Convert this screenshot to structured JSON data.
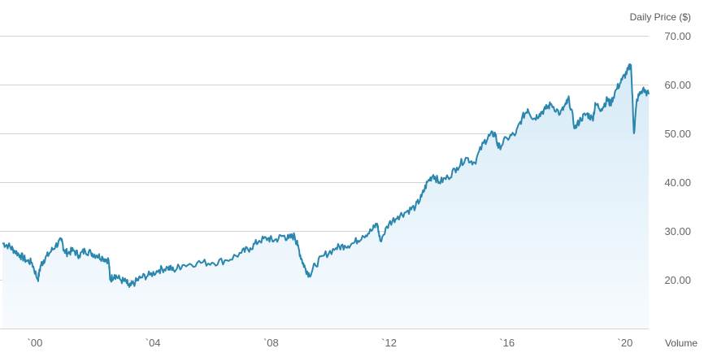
{
  "chart_data": {
    "type": "area",
    "title": "",
    "ylabel": "Daily Price ($)",
    "volume_label": "Volume",
    "ylim": [
      10,
      70
    ],
    "xlim": [
      1998.9,
      2020.8
    ],
    "y_ticks": [
      {
        "value": 70,
        "label": "70.00"
      },
      {
        "value": 60,
        "label": "60.00"
      },
      {
        "value": 50,
        "label": "50.00"
      },
      {
        "value": 40,
        "label": "40.00"
      },
      {
        "value": 30,
        "label": "30.00"
      },
      {
        "value": 20,
        "label": "20.00"
      }
    ],
    "gridline_values": [
      70,
      60,
      50,
      40,
      30,
      20,
      10
    ],
    "x_ticks": [
      {
        "value": 2000,
        "label": "`00"
      },
      {
        "value": 2004,
        "label": "`04"
      },
      {
        "value": 2008,
        "label": "`08"
      },
      {
        "value": 2012,
        "label": "`12"
      },
      {
        "value": 2016,
        "label": "`16"
      },
      {
        "value": 2020,
        "label": "`20"
      }
    ],
    "grid": true,
    "colors": {
      "line": "#2a86ad",
      "area_top": "#d6eaf7",
      "area_bottom": "#f7fbfe",
      "grid": "#d4d4d4",
      "text": "#666666"
    },
    "series": [
      {
        "x": [
          1998.9,
          1999.1,
          1999.3,
          1999.5,
          1999.7,
          1999.9,
          2000.1,
          2000.2,
          2000.3,
          2000.5,
          2000.7,
          2000.9,
          2001.0,
          2001.1,
          2001.3,
          2001.5,
          2001.7,
          2001.9,
          2002.1,
          2002.3,
          2002.5,
          2002.55,
          2002.7,
          2002.9,
          2003.1,
          2003.2,
          2003.4,
          2003.6,
          2003.9,
          2004.2,
          2004.5,
          2004.7,
          2005.0,
          2005.5,
          2006.0,
          2006.5,
          2007.0,
          2007.3,
          2007.6,
          2007.9,
          2008.1,
          2008.4,
          2008.6,
          2008.8,
          2008.9,
          2009.05,
          2009.15,
          2009.3,
          2009.5,
          2009.8,
          2010.2,
          2010.5,
          2010.8,
          2011.1,
          2011.4,
          2011.6,
          2011.7,
          2012.0,
          2012.3,
          2012.6,
          2012.9,
          2013.1,
          2013.3,
          2013.5,
          2013.7,
          2014.0,
          2014.3,
          2014.6,
          2014.9,
          2015.2,
          2015.4,
          2015.6,
          2015.7,
          2016.0,
          2016.3,
          2016.5,
          2016.7,
          2016.9,
          2017.1,
          2017.3,
          2017.5,
          2017.8,
          2018.0,
          2018.1,
          2018.3,
          2018.5,
          2018.7,
          2018.9,
          2019.0,
          2019.2,
          2019.4,
          2019.5,
          2019.7,
          2019.9,
          2020.1,
          2020.2,
          2020.3,
          2020.4,
          2020.6,
          2020.8
        ],
        "y": [
          27.5,
          27,
          26,
          25,
          24,
          23.5,
          20,
          23,
          24,
          25.5,
          27,
          28,
          26,
          25.5,
          26,
          25,
          26,
          25.5,
          25,
          24.5,
          24,
          20,
          21,
          20,
          19.5,
          18.5,
          19.5,
          20.5,
          21,
          22,
          22.5,
          22,
          23,
          23.5,
          23.5,
          24,
          25.5,
          26.5,
          28,
          28.5,
          28,
          29,
          28.5,
          29,
          27,
          24,
          22.5,
          21,
          23,
          25,
          26.5,
          27,
          27.5,
          29,
          30,
          31.5,
          28,
          31.5,
          33,
          34,
          35,
          37,
          40,
          41.5,
          40,
          41,
          43,
          45,
          44,
          48,
          49.5,
          50,
          47,
          49,
          50,
          53,
          55,
          53,
          54,
          55,
          56,
          54,
          56,
          57,
          51,
          53,
          54,
          53,
          56,
          55,
          57,
          56,
          59,
          61,
          63,
          64,
          50,
          57,
          59,
          58
        ]
      }
    ]
  }
}
